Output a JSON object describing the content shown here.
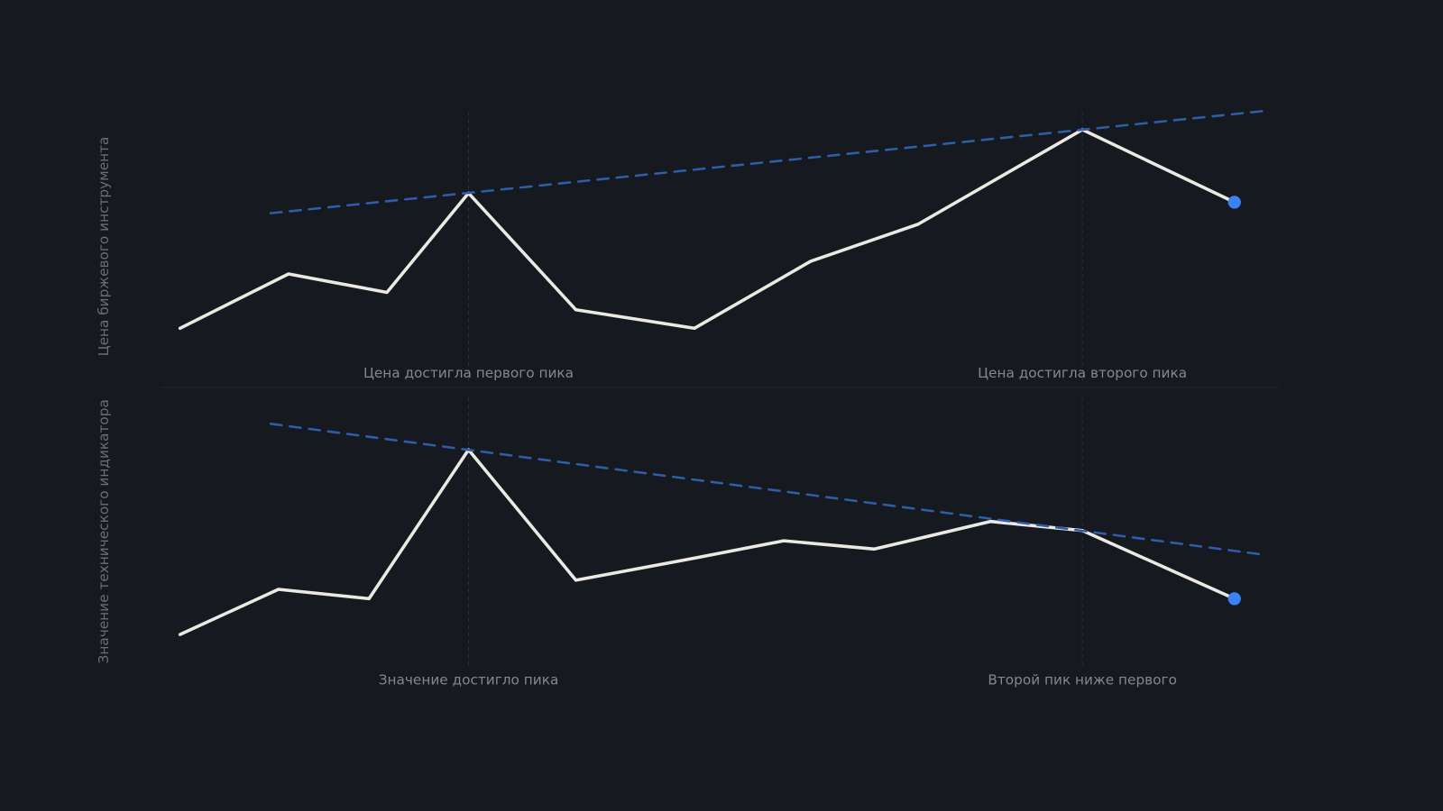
{
  "chart_data": [
    {
      "type": "line",
      "ylabel": "Цена биржевого инструмента",
      "xlim": [
        0,
        100
      ],
      "ylim": [
        0,
        100
      ],
      "marker_color": "#3b82f6",
      "series": [
        {
          "color": "#ece9e4",
          "x": [
            1.7,
            11.4,
            20.2,
            27.5,
            37.1,
            47.7,
            58.1,
            67.7,
            82.4,
            96.0
          ],
          "values": [
            21,
            40.7,
            34,
            70,
            27.7,
            21,
            45.3,
            58.7,
            93,
            66.7
          ]
        },
        {
          "color": "#2f5da8",
          "dashed": true,
          "x": [
            9.8,
            98.5
          ],
          "values": [
            62.7,
            99.7
          ]
        }
      ],
      "annotations": [
        {
          "x": 27.5,
          "text": "Цена достигла первого пика"
        },
        {
          "x": 82.4,
          "text": "Цена достигла второго пика"
        }
      ]
    },
    {
      "type": "line",
      "ylabel": "Значение технического индикатора",
      "xlim": [
        0,
        100
      ],
      "ylim": [
        0,
        100
      ],
      "marker_color": "#3b82f6",
      "series": [
        {
          "color": "#ece9e4",
          "x": [
            1.7,
            10.5,
            18.6,
            27.5,
            37.1,
            47.7,
            55.7,
            63.8,
            74.2,
            82.4,
            96.0
          ],
          "values": [
            13.3,
            29.7,
            26.3,
            80.3,
            33,
            41,
            47.3,
            44.3,
            54.3,
            51,
            26.3
          ]
        },
        {
          "color": "#2f5da8",
          "dashed": true,
          "x": [
            9.8,
            98.5
          ],
          "values": [
            89.7,
            42.3
          ]
        }
      ],
      "annotations": [
        {
          "x": 27.5,
          "text": "Значение достигло пика"
        },
        {
          "x": 82.4,
          "text": "Второй пик ниже первого"
        }
      ]
    }
  ]
}
